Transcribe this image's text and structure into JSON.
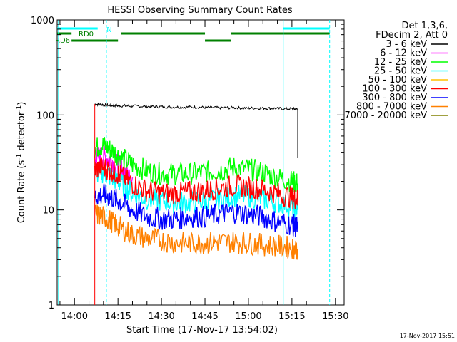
{
  "chart_data": {
    "type": "line",
    "title": "HESSI Observing Summary Count Rates",
    "xlabel": "Start Time (17-Nov-17 13:54:02)",
    "ylabel": "Count Rate (s",
    "ylabel_exp1": "-1",
    "ylabel_mid": " detector",
    "ylabel_exp2": "-1",
    "ylabel_end": ")",
    "y_scale": "log",
    "ylim": [
      1,
      1000
    ],
    "y_ticks": [
      {
        "value": 1,
        "label": "1"
      },
      {
        "value": 10,
        "label": "10"
      },
      {
        "value": 100,
        "label": "100"
      },
      {
        "value": 1000,
        "label": "1000"
      }
    ],
    "xlim": [
      "13:54:02",
      "15:33:00"
    ],
    "x_ticks": [
      {
        "value": "14:00",
        "label": "14:00"
      },
      {
        "value": "14:15",
        "label": "14:15"
      },
      {
        "value": "14:30",
        "label": "14:30"
      },
      {
        "value": "14:45",
        "label": "14:45"
      },
      {
        "value": "15:00",
        "label": "15:00"
      },
      {
        "value": "15:15",
        "label": "15:15"
      },
      {
        "value": "15:30",
        "label": "15:30"
      }
    ],
    "legend_header": [
      "Det 1,3,6,",
      "FDecim 2, Att 0"
    ],
    "legend_position": "right",
    "x": [
      "14:07",
      "14:10",
      "14:13",
      "14:16",
      "14:20",
      "14:25",
      "14:30",
      "14:35",
      "14:40",
      "14:45",
      "14:50",
      "14:55",
      "15:00",
      "15:05",
      "15:10",
      "15:15",
      "15:17"
    ],
    "series": [
      {
        "name": "3 - 6 keV",
        "color": "#000000",
        "values": [
          130,
          128,
          126,
          125,
          124,
          123,
          122,
          121,
          121,
          120,
          119,
          119,
          118,
          118,
          117,
          116,
          115
        ]
      },
      {
        "name": "6 - 12 keV",
        "color": "#ff00ff",
        "values": [
          35,
          37,
          33,
          28,
          22,
          null,
          null,
          null,
          null,
          null,
          null,
          null,
          null,
          null,
          null,
          null,
          null
        ]
      },
      {
        "name": "12 - 25 keV",
        "color": "#00ff00",
        "values": [
          45,
          48,
          42,
          36,
          30,
          26,
          24,
          24,
          24,
          25,
          26,
          28,
          27,
          25,
          22,
          20,
          19
        ]
      },
      {
        "name": "25 - 50 keV",
        "color": "#00ffff",
        "values": [
          24,
          25,
          22,
          19,
          15,
          13,
          12.5,
          12,
          12,
          12.5,
          13,
          14,
          14,
          13,
          12,
          11,
          10
        ]
      },
      {
        "name": "50 - 100 keV",
        "color": "#ffc000",
        "values": [
          null,
          null,
          null,
          null,
          null,
          null,
          null,
          null,
          null,
          null,
          null,
          null,
          null,
          null,
          null,
          null,
          null
        ]
      },
      {
        "name": "100 - 300 keV",
        "color": "#ff0000",
        "values": [
          27,
          28,
          26,
          23,
          19,
          16,
          15,
          15,
          15.5,
          16,
          17,
          18,
          17.5,
          16.5,
          15,
          13.5,
          13
        ]
      },
      {
        "name": "300 - 800 keV",
        "color": "#0000ff",
        "values": [
          14,
          14.5,
          13.5,
          12,
          10,
          8.5,
          8,
          8,
          8.5,
          8.5,
          9,
          9.5,
          9,
          8.5,
          7.5,
          7,
          6.5
        ]
      },
      {
        "name": "800 - 7000 keV",
        "color": "#ff8000",
        "values": [
          9,
          8.5,
          7.5,
          6.5,
          5.5,
          5,
          4.8,
          4.5,
          4.5,
          4.5,
          4.6,
          4.6,
          4.5,
          4.3,
          4.2,
          4,
          3.9
        ]
      },
      {
        "name": "7000 - 20000 keV",
        "color": "#808000",
        "values": [
          null,
          null,
          null,
          null,
          null,
          null,
          null,
          null,
          null,
          null,
          null,
          null,
          null,
          null,
          null,
          null,
          null
        ]
      }
    ],
    "flag_bars": [
      {
        "label": "N",
        "color": "#00ffff",
        "segments": [
          [
            "13:54:02",
            "14:08"
          ],
          [
            "15:12",
            "15:28"
          ]
        ]
      },
      {
        "label": "RD0",
        "color": "#008000",
        "segments": [
          [
            "13:54:02",
            "13:59"
          ],
          [
            "14:16",
            "14:45"
          ],
          [
            "14:54",
            "15:28"
          ]
        ]
      },
      {
        "label": "RD6",
        "color": "#008000",
        "segments": [
          [
            "13:59",
            "14:15"
          ],
          [
            "14:45",
            "14:54"
          ]
        ]
      }
    ],
    "guide_lines": {
      "solid_cyan": [
        "13:54:30",
        "15:12"
      ],
      "dashed_cyan": [
        "14:11",
        "15:28"
      ]
    },
    "colors": {
      "cyan": "#00ffff",
      "dark_green": "#008000"
    }
  },
  "footer": {
    "timestamp": "17-Nov-2017 15:51"
  }
}
